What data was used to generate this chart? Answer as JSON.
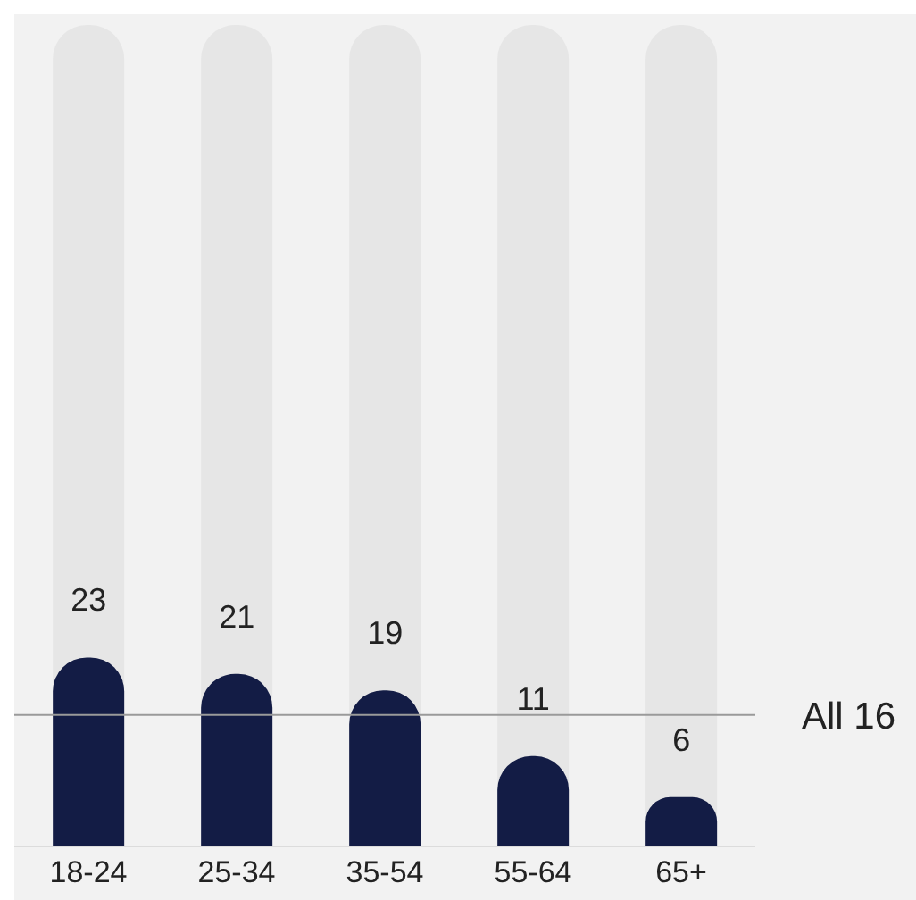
{
  "chart_data": {
    "type": "bar",
    "categories": [
      "18-24",
      "25-34",
      "35-54",
      "55-64",
      "65+"
    ],
    "values": [
      23,
      21,
      19,
      11,
      6
    ],
    "color": "#131c45",
    "ylim": [
      0,
      100
    ],
    "data_labels": true,
    "grid": false,
    "legend": false,
    "ref_lines": [
      {
        "axis": "y",
        "value": 16,
        "label": "All 16",
        "color": "#9a9a9a"
      }
    ]
  }
}
